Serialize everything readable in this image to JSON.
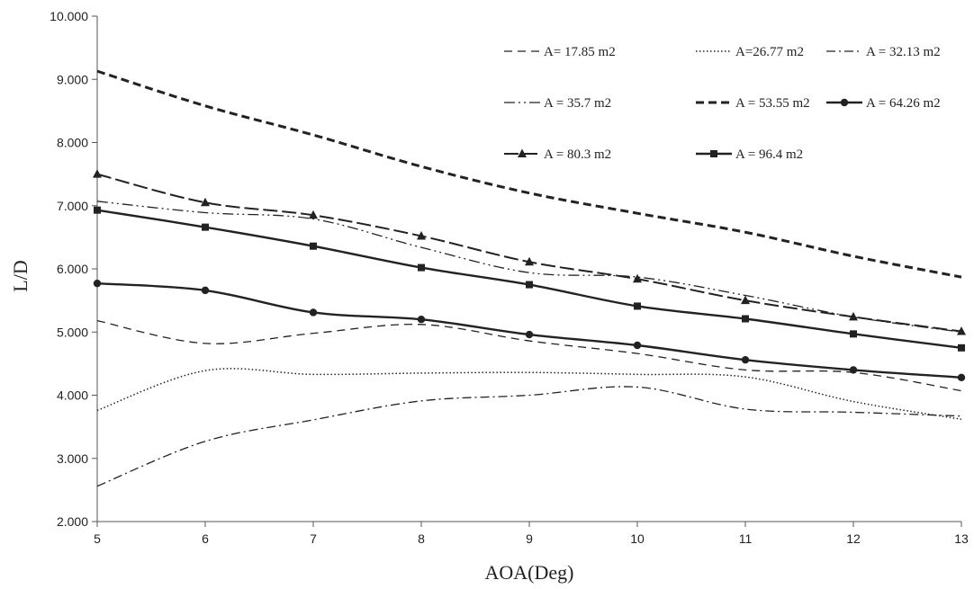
{
  "chart_data": {
    "type": "line",
    "xlabel": "AOA(Deg)",
    "ylabel": "L/D",
    "x": [
      5,
      6,
      7,
      8,
      9,
      10,
      11,
      12,
      13
    ],
    "xlim": [
      5,
      13
    ],
    "ylim": [
      2,
      10
    ],
    "x_ticks": [
      "5",
      "6",
      "7",
      "8",
      "9",
      "10",
      "11",
      "12",
      "13"
    ],
    "y_ticks": [
      "2.000",
      "3.000",
      "4.000",
      "5.000",
      "6.000",
      "7.000",
      "8.000",
      "9.000",
      "10.000"
    ],
    "y_tick_values": [
      2,
      3,
      4,
      5,
      6,
      7,
      8,
      9,
      10
    ],
    "grid": false,
    "legend_position": "top-right",
    "series": [
      {
        "name": "A= 17.85 m2",
        "style": "dash",
        "marker": "none",
        "color": "#222222",
        "values": [
          5.18,
          4.82,
          4.98,
          5.12,
          4.86,
          4.66,
          4.4,
          4.36,
          4.07
        ]
      },
      {
        "name": "A=26.77 m2",
        "style": "dot",
        "marker": "none",
        "color": "#222222",
        "values": [
          3.76,
          4.39,
          4.33,
          4.35,
          4.36,
          4.33,
          4.29,
          3.9,
          3.62
        ]
      },
      {
        "name": "A = 32.13 m2",
        "style": "dashdot",
        "marker": "none",
        "color": "#222222",
        "values": [
          2.56,
          3.27,
          3.61,
          3.91,
          4.0,
          4.13,
          3.78,
          3.73,
          3.67
        ]
      },
      {
        "name": "A = 35.7 m2",
        "style": "dashdotdot",
        "marker": "none",
        "color": "#222222",
        "values": [
          7.07,
          6.89,
          6.79,
          6.34,
          5.94,
          5.87,
          5.58,
          5.24,
          5.0
        ]
      },
      {
        "name": "A = 53.55 m2",
        "style": "heavydash",
        "marker": "none",
        "color": "#222222",
        "values": [
          9.13,
          8.58,
          8.12,
          7.62,
          7.2,
          6.88,
          6.58,
          6.2,
          5.87
        ]
      },
      {
        "name": "A = 64.26 m2",
        "style": "solid",
        "marker": "circle",
        "color": "#222222",
        "values": [
          5.77,
          5.66,
          5.31,
          5.2,
          4.96,
          4.79,
          4.56,
          4.4,
          4.28
        ]
      },
      {
        "name": "A = 80.3 m2",
        "style": "longdash",
        "marker": "triangle",
        "color": "#222222",
        "values": [
          7.5,
          7.05,
          6.85,
          6.52,
          6.11,
          5.84,
          5.5,
          5.24,
          5.01
        ]
      },
      {
        "name": "A = 96.4 m2",
        "style": "solid",
        "marker": "square",
        "color": "#222222",
        "values": [
          6.93,
          6.66,
          6.36,
          6.02,
          5.75,
          5.41,
          5.21,
          4.97,
          4.75
        ]
      }
    ]
  }
}
